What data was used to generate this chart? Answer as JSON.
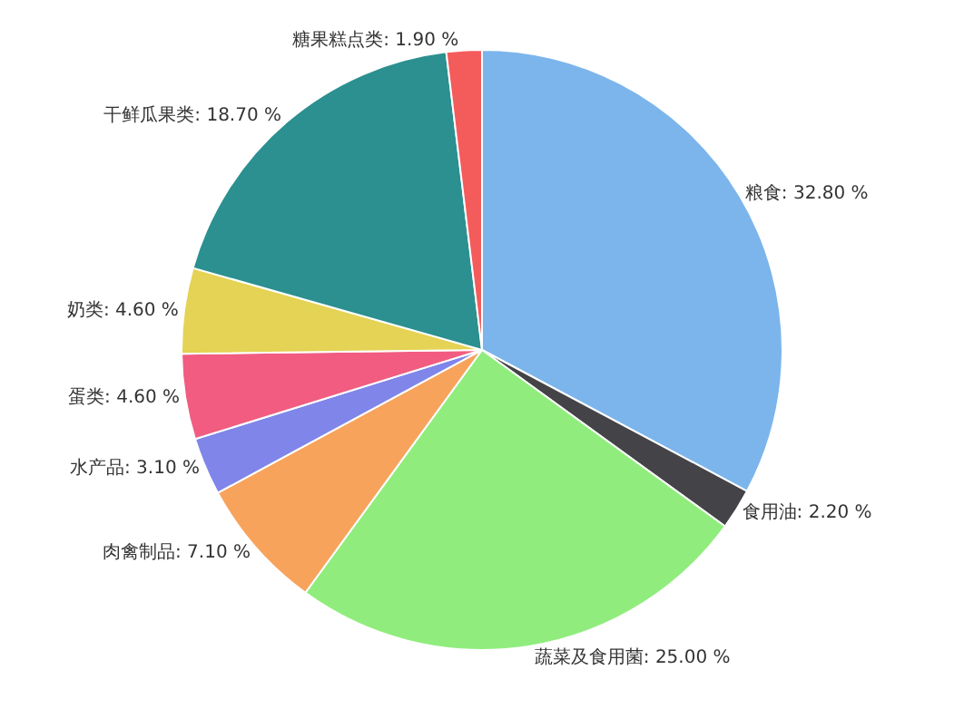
{
  "chart_data": {
    "type": "pie",
    "categories": [
      "粮食",
      "食用油",
      "蔬菜及食用菌",
      "肉禽制品",
      "水产品",
      "蛋类",
      "奶类",
      "干鲜瓜果类",
      "糖果糕点类"
    ],
    "values": [
      32.8,
      2.2,
      25.0,
      7.1,
      3.1,
      4.6,
      4.6,
      18.7,
      1.9
    ],
    "value_labels": [
      "32.80 %",
      "2.20 %",
      "25.00 %",
      "7.10 %",
      "3.10 %",
      "4.60 %",
      "4.60 %",
      "18.70 %",
      "1.90 %"
    ],
    "colors": [
      "#7cb5ec",
      "#434348",
      "#90ed7d",
      "#f7a35c",
      "#8085e9",
      "#f15c80",
      "#e4d354",
      "#2b908f",
      "#f45b5b"
    ],
    "legend": false
  }
}
